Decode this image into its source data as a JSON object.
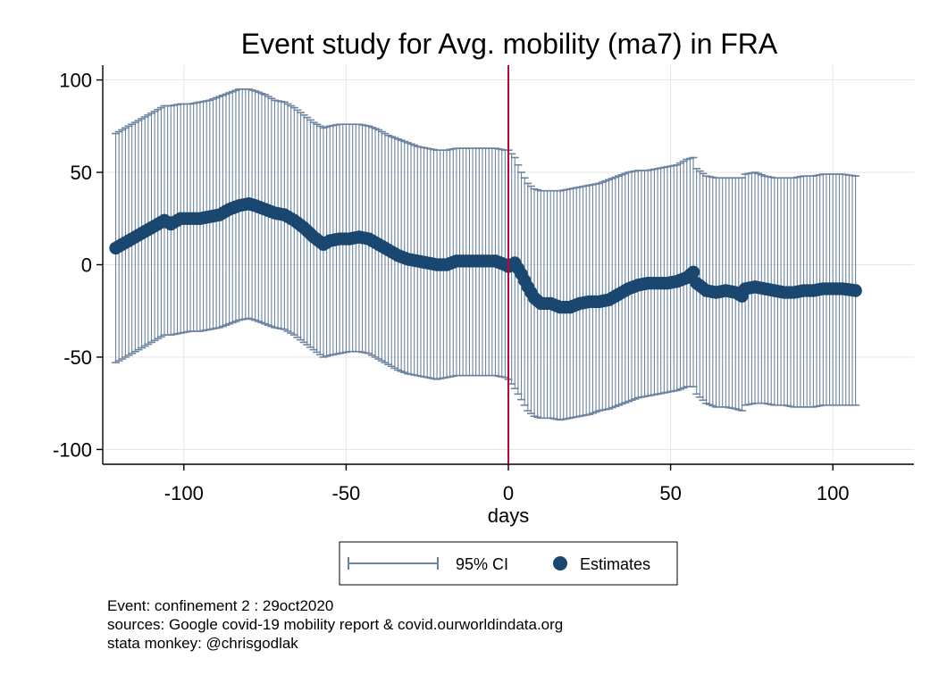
{
  "chart_data": {
    "type": "scatter",
    "title": "Event study for Avg. mobility (ma7) in FRA",
    "xlabel": "days",
    "ylabel": "",
    "xlim": [
      -125,
      125
    ],
    "ylim": [
      -108,
      108
    ],
    "xticks": [
      -100,
      -50,
      0,
      50,
      100
    ],
    "yticks": [
      100,
      50,
      0,
      -50,
      -100
    ],
    "grid": true,
    "event_line_x": 0,
    "legend": {
      "position": "bottom",
      "entries": [
        "95% CI",
        "Estimates"
      ]
    },
    "colors": {
      "series": "#1a476f",
      "ci": "#6c84a0",
      "event_line": "#c10534",
      "grid": "#e6e6e6"
    },
    "series_points": {
      "x": [
        -121,
        -106,
        -104,
        -101,
        -98,
        -95,
        -92,
        -89,
        -86,
        -83,
        -80,
        -78,
        -75,
        -72,
        -69,
        -66,
        -63,
        -60,
        -57,
        -55,
        -52,
        -49,
        -46,
        -43,
        -40,
        -37,
        -34,
        -31,
        -28,
        -25,
        -22,
        -19,
        -16,
        -13,
        -10,
        -7,
        -4,
        -1,
        0,
        2,
        4,
        6,
        8,
        10,
        13,
        16,
        19,
        22,
        25,
        28,
        31,
        34,
        37,
        40,
        43,
        46,
        49,
        52,
        55,
        57,
        58,
        61,
        64,
        67,
        70,
        72,
        73,
        76,
        79,
        82,
        85,
        88,
        91,
        94,
        97,
        100,
        103,
        107
      ],
      "estimate": [
        9,
        24,
        22,
        25,
        25,
        25,
        26,
        27,
        30,
        32,
        33,
        32,
        30,
        28,
        27,
        24,
        20,
        15,
        11,
        13,
        14,
        14,
        15,
        14,
        11,
        8,
        5,
        3,
        2,
        1,
        0,
        0,
        2,
        2,
        2,
        2,
        2,
        0,
        -1,
        1,
        -5,
        -12,
        -18,
        -21,
        -21,
        -23,
        -23,
        -21,
        -20,
        -20,
        -19,
        -16,
        -13,
        -11,
        -10,
        -10,
        -10,
        -9,
        -7,
        -4,
        -10,
        -14,
        -15,
        -14,
        -15,
        -17,
        -13,
        -12,
        -13,
        -14,
        -15,
        -15,
        -14,
        -14,
        -13,
        -13,
        -13,
        -14
      ],
      "ci_upper": [
        71,
        86,
        86,
        87,
        87,
        88,
        89,
        91,
        93,
        95,
        95,
        94,
        92,
        89,
        88,
        85,
        81,
        77,
        74,
        75,
        76,
        76,
        76,
        75,
        73,
        70,
        68,
        66,
        64,
        63,
        62,
        62,
        63,
        63,
        63,
        63,
        63,
        62,
        62,
        58,
        50,
        44,
        41,
        40,
        40,
        40,
        41,
        42,
        43,
        44,
        46,
        48,
        50,
        51,
        51,
        52,
        53,
        54,
        57,
        58,
        52,
        48,
        47,
        47,
        47,
        47,
        49,
        50,
        48,
        47,
        47,
        47,
        48,
        48,
        49,
        49,
        49,
        48
      ],
      "ci_lower": [
        -53,
        -38,
        -38,
        -37,
        -36,
        -36,
        -35,
        -34,
        -32,
        -30,
        -29,
        -30,
        -32,
        -34,
        -35,
        -38,
        -42,
        -46,
        -50,
        -49,
        -48,
        -47,
        -47,
        -48,
        -51,
        -54,
        -57,
        -59,
        -60,
        -61,
        -62,
        -61,
        -60,
        -60,
        -60,
        -60,
        -60,
        -61,
        -62,
        -67,
        -73,
        -79,
        -82,
        -83,
        -83,
        -84,
        -83,
        -82,
        -81,
        -79,
        -78,
        -76,
        -74,
        -72,
        -71,
        -70,
        -69,
        -68,
        -66,
        -66,
        -70,
        -75,
        -77,
        -77,
        -78,
        -79,
        -76,
        -75,
        -75,
        -76,
        -76,
        -77,
        -77,
        -77,
        -76,
        -76,
        -76,
        -76
      ]
    },
    "notes": [
      "Event: confinement 2 : 29oct2020",
      "sources: Google covid-19 mobility report & covid.ourworldindata.org",
      "stata monkey: @chrisgodlak"
    ]
  }
}
